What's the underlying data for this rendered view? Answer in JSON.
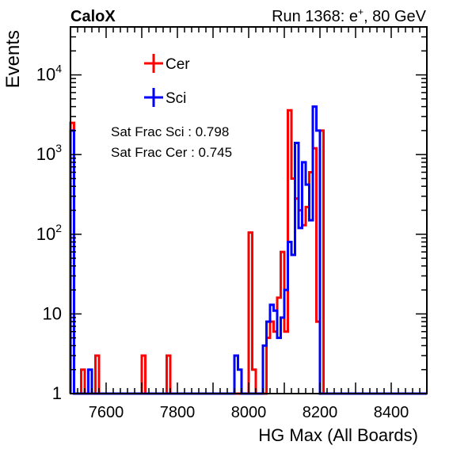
{
  "chart_data": {
    "type": "histogram",
    "header_left": "CaloX",
    "header_right": "Run 1368: e⁺, 80 GeV",
    "xlabel": "HG Max (All Boards)",
    "ylabel": "Events",
    "xlim": [
      7500,
      8500
    ],
    "ylim": [
      1,
      40000
    ],
    "yscale": "log",
    "bin_width": 10,
    "x_ticks": [
      7600,
      7800,
      8000,
      8200,
      8400
    ],
    "y_ticks": [
      {
        "value": 1,
        "label": "1"
      },
      {
        "value": 10,
        "label": "10"
      },
      {
        "value": 100,
        "label": "10",
        "exp": "2"
      },
      {
        "value": 1000,
        "label": "10",
        "exp": "3"
      },
      {
        "value": 10000,
        "label": "10",
        "exp": "4"
      }
    ],
    "legend_position": "top-left",
    "series": [
      {
        "name": "Cer",
        "color": "#ff0000",
        "bins": [
          {
            "x": 7500,
            "y": 2500
          },
          {
            "x": 7530,
            "y": 2
          },
          {
            "x": 7570,
            "y": 3
          },
          {
            "x": 7700,
            "y": 3
          },
          {
            "x": 7770,
            "y": 3
          },
          {
            "x": 8000,
            "y": 105
          },
          {
            "x": 8010,
            "y": 2
          },
          {
            "x": 8050,
            "y": 5
          },
          {
            "x": 8060,
            "y": 8
          },
          {
            "x": 8070,
            "y": 6
          },
          {
            "x": 8080,
            "y": 16
          },
          {
            "x": 8090,
            "y": 60
          },
          {
            "x": 8100,
            "y": 6
          },
          {
            "x": 8110,
            "y": 3600
          },
          {
            "x": 8120,
            "y": 500
          },
          {
            "x": 8130,
            "y": 280
          },
          {
            "x": 8140,
            "y": 200
          },
          {
            "x": 8150,
            "y": 130
          },
          {
            "x": 8160,
            "y": 220
          },
          {
            "x": 8170,
            "y": 600
          },
          {
            "x": 8180,
            "y": 1200
          },
          {
            "x": 8190,
            "y": 8
          },
          {
            "x": 8200,
            "y": 2000
          }
        ]
      },
      {
        "name": "Sci",
        "color": "#0000ff",
        "bins": [
          {
            "x": 7500,
            "y": 2000
          },
          {
            "x": 7550,
            "y": 2
          },
          {
            "x": 7960,
            "y": 3
          },
          {
            "x": 7970,
            "y": 2
          },
          {
            "x": 8040,
            "y": 4
          },
          {
            "x": 8050,
            "y": 8
          },
          {
            "x": 8060,
            "y": 13
          },
          {
            "x": 8070,
            "y": 11
          },
          {
            "x": 8080,
            "y": 5
          },
          {
            "x": 8090,
            "y": 9
          },
          {
            "x": 8100,
            "y": 20
          },
          {
            "x": 8110,
            "y": 80
          },
          {
            "x": 8120,
            "y": 55
          },
          {
            "x": 8130,
            "y": 1400
          },
          {
            "x": 8140,
            "y": 120
          },
          {
            "x": 8150,
            "y": 800
          },
          {
            "x": 8160,
            "y": 420
          },
          {
            "x": 8170,
            "y": 150
          },
          {
            "x": 8180,
            "y": 4000
          },
          {
            "x": 8190,
            "y": 2000
          }
        ]
      }
    ],
    "annotations": [
      "Sat Frac Sci : 0.798",
      "Sat Frac Cer : 0.745"
    ]
  }
}
